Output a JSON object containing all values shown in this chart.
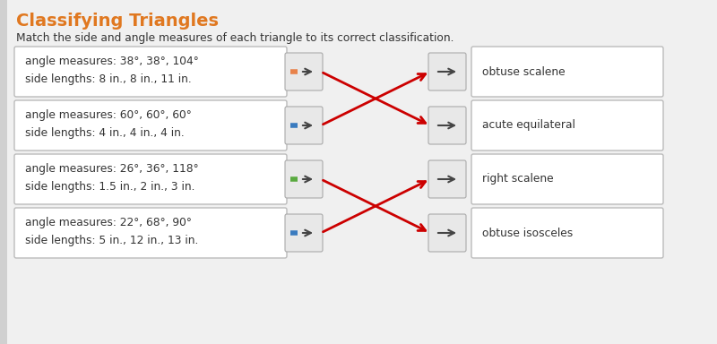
{
  "title": "Classifying Triangles",
  "instruction": "Match the side and angle measures of each triangle to its correct classification.",
  "page_bg": "#d0d0d0",
  "content_bg": "#f0f0f0",
  "left_items": [
    {
      "line1": "angle measures: 38°, 38°, 104°",
      "line2": "side lengths: 8 in., 8 in., 11 in.",
      "bar_color": "#e8824a"
    },
    {
      "line1": "angle measures: 60°, 60°, 60°",
      "line2": "side lengths: 4 in., 4 in., 4 in.",
      "bar_color": "#3a7bbf"
    },
    {
      "line1": "angle measures: 26°, 36°, 118°",
      "line2": "side lengths: 1.5 in., 2 in., 3 in.",
      "bar_color": "#5aaa40"
    },
    {
      "line1": "angle measures: 22°, 68°, 90°",
      "line2": "side lengths: 5 in., 12 in., 13 in.",
      "bar_color": "#3a7bbf"
    }
  ],
  "right_items": [
    "obtuse scalene",
    "acute equilateral",
    "right scalene",
    "obtuse isosceles"
  ],
  "arrows": [
    {
      "from": 0,
      "to": 1
    },
    {
      "from": 1,
      "to": 0
    },
    {
      "from": 2,
      "to": 3
    },
    {
      "from": 3,
      "to": 2
    }
  ],
  "title_color": "#e07820",
  "box_bg": "#ffffff",
  "box_border": "#bbbbbb",
  "arrow_color": "#cc0000",
  "text_color": "#333333",
  "font_size": 9.0,
  "title_font_size": 14,
  "title_partial": "lassifying Triangles"
}
